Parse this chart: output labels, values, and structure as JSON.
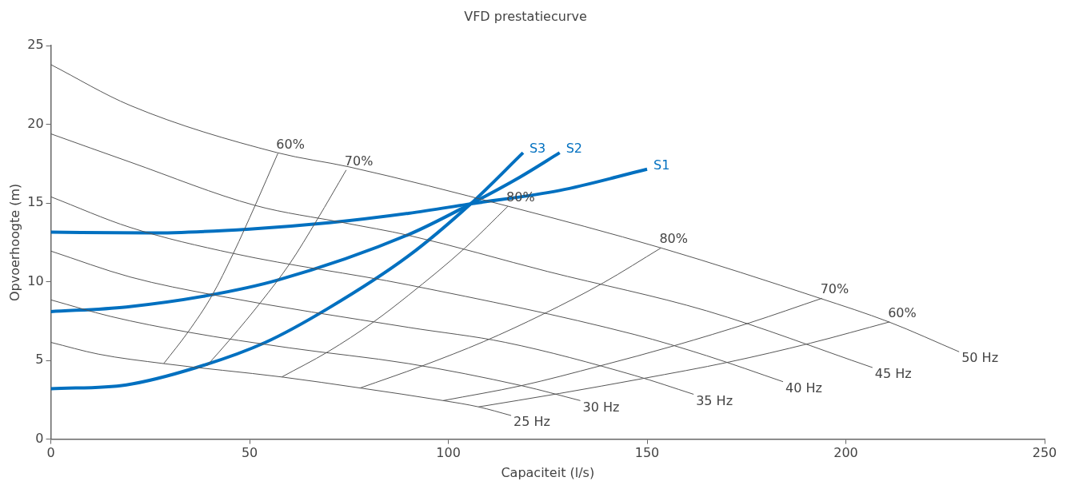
{
  "chart_data": {
    "type": "line",
    "title": "VFD prestatiecurve",
    "xlabel": "Capaciteit (l/s)",
    "ylabel": "Opvoerhoogte (m)",
    "xlim": [
      0,
      250
    ],
    "xticks": [
      0,
      50,
      100,
      150,
      200,
      250
    ],
    "ylim": [
      0,
      25
    ],
    "yticks": [
      0,
      5,
      10,
      15,
      20,
      25
    ],
    "grid": false,
    "legend": false,
    "marker": "none",
    "line_style": "solid",
    "series": [
      {
        "name": "50 Hz",
        "color": "#555555",
        "x": [
          0,
          20,
          57,
          75,
          115,
          153.5,
          193.5,
          210.8,
          228.5
        ],
        "values": [
          23.8,
          21.2,
          18.2,
          17.3,
          14.8,
          12.15,
          8.95,
          7.45,
          5.55
        ]
      },
      {
        "name": "45 Hz",
        "color": "#555555",
        "x": [
          0,
          20,
          51.4,
          73.7,
          90,
          125,
          165,
          206.7
        ],
        "values": [
          19.4,
          17.6,
          14.85,
          13.75,
          12.95,
          10.65,
          8.15,
          4.55
        ]
      },
      {
        "name": "40 Hz",
        "color": "#555555",
        "x": [
          0,
          20,
          45.9,
          90,
          146.8,
          165,
          184.2
        ],
        "values": [
          15.4,
          13.45,
          11.8,
          9.8,
          6.65,
          5.3,
          3.65
        ]
      },
      {
        "name": "35 Hz",
        "color": "#555555",
        "x": [
          0,
          20,
          41.2,
          90,
          114.3,
          146.8,
          161.7
        ],
        "values": [
          11.95,
          10.3,
          9.15,
          7.1,
          6.15,
          4.05,
          2.85
        ]
      },
      {
        "name": "30 Hz",
        "color": "#555555",
        "x": [
          0,
          15,
          34.5,
          60,
          90,
          118.4,
          133.2
        ],
        "values": [
          8.85,
          7.8,
          6.8,
          5.8,
          4.8,
          3.4,
          2.45
        ]
      },
      {
        "name": "25 Hz",
        "color": "#555555",
        "x": [
          0,
          12,
          28.4,
          58.1,
          77.8,
          98.7,
          107.6,
          115.8
        ],
        "values": [
          6.15,
          5.4,
          4.8,
          3.95,
          3.25,
          2.45,
          2.05,
          1.5
        ]
      },
      {
        "name": "60%",
        "color": "#555555",
        "x": [
          28.4,
          34.5,
          40.6,
          45.9,
          51.4,
          57.1
        ],
        "values": [
          4.8,
          6.8,
          9.15,
          11.8,
          14.85,
          18.15
        ]
      },
      {
        "name": "70%",
        "color": "#555555",
        "x": [
          39.2,
          45.3,
          52.8,
          60.1,
          67,
          74.3
        ],
        "values": [
          4.65,
          6.4,
          8.7,
          11.15,
          13.95,
          17.1
        ]
      },
      {
        "name": "80%",
        "color": "#555555",
        "x": [
          58.1,
          69.7,
          81.2,
          90,
          104.2,
          115
        ],
        "values": [
          3.95,
          5.55,
          7.45,
          9.15,
          12.15,
          14.8
        ]
      },
      {
        "name": "80%",
        "color": "#555555",
        "x": [
          77.8,
          93.4,
          108.9,
          123.9,
          139.1,
          153.5
        ],
        "values": [
          3.25,
          4.65,
          6.2,
          7.95,
          9.95,
          12.15
        ]
      },
      {
        "name": "70%",
        "color": "#555555",
        "x": [
          98.7,
          118.4,
          138.1,
          157,
          175.9,
          194
        ],
        "values": [
          2.45,
          3.4,
          4.65,
          5.95,
          7.4,
          8.95
        ]
      },
      {
        "name": "60%",
        "color": "#555555",
        "x": [
          107.6,
          127.9,
          148.9,
          170.6,
          191.1,
          211
        ],
        "values": [
          2.05,
          2.9,
          3.85,
          4.9,
          6.1,
          7.45
        ]
      },
      {
        "name": "S1",
        "color": "#0070c0",
        "x": [
          0,
          25,
          50,
          70,
          90,
          105.6,
          128,
          150
        ],
        "values": [
          13.15,
          13.1,
          13.35,
          13.75,
          14.35,
          14.95,
          15.8,
          17.15
        ]
      },
      {
        "name": "S2",
        "color": "#0070c0",
        "x": [
          0,
          19,
          40,
          57,
          90,
          105.6,
          118,
          128
        ],
        "values": [
          8.1,
          8.4,
          9.15,
          10.1,
          13,
          14.95,
          16.65,
          18.2
        ]
      },
      {
        "name": "S3",
        "color": "#0070c0",
        "x": [
          0,
          19,
          36.6,
          54,
          69.7,
          90,
          105.6,
          118.8
        ],
        "values": [
          3.2,
          3.45,
          4.55,
          6.15,
          8.3,
          11.65,
          14.95,
          18.2
        ]
      }
    ]
  }
}
